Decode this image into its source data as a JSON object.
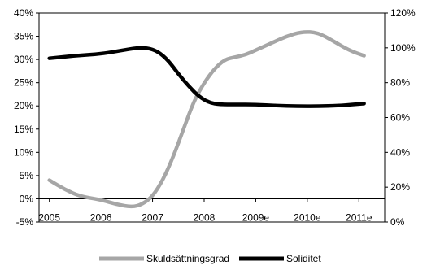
{
  "chart_data": {
    "type": "line",
    "x_categories": [
      "2005",
      "2006",
      "2007",
      "2008",
      "2009e",
      "2010e",
      "2011e"
    ],
    "y_left": {
      "ticks": [
        "-5%",
        "0%",
        "5%",
        "10%",
        "15%",
        "20%",
        "25%",
        "30%",
        "35%",
        "40%"
      ],
      "range": [
        -5,
        40
      ]
    },
    "y_right": {
      "ticks": [
        "0%",
        "20%",
        "40%",
        "60%",
        "80%",
        "100%",
        "120%"
      ],
      "range": [
        0,
        120
      ]
    },
    "grid": false,
    "legend_position": "bottom",
    "series": [
      {
        "name": "Skuldsättningsgrad",
        "axis": "left",
        "color": "#a6a6a6",
        "points": [
          [
            2005.0,
            4
          ],
          [
            2005.3,
            2
          ],
          [
            2005.6,
            0.5
          ],
          [
            2006.0,
            -0.2
          ],
          [
            2006.3,
            -1.2
          ],
          [
            2006.6,
            -1.8
          ],
          [
            2006.8,
            -1.2
          ],
          [
            2007.0,
            0.5
          ],
          [
            2007.2,
            4
          ],
          [
            2007.4,
            9
          ],
          [
            2007.6,
            15
          ],
          [
            2007.8,
            21
          ],
          [
            2008.0,
            25
          ],
          [
            2008.2,
            28
          ],
          [
            2008.4,
            30
          ],
          [
            2008.6,
            30.5
          ],
          [
            2008.8,
            31
          ],
          [
            2009.0,
            32
          ],
          [
            2009.3,
            33.5
          ],
          [
            2009.6,
            35
          ],
          [
            2009.9,
            36
          ],
          [
            2010.2,
            35.8
          ],
          [
            2010.5,
            34
          ],
          [
            2010.8,
            32
          ],
          [
            2011.1,
            30.8
          ]
        ]
      },
      {
        "name": "Soliditet",
        "axis": "right",
        "color": "#000000",
        "points": [
          [
            2005.0,
            94
          ],
          [
            2005.5,
            95.5
          ],
          [
            2006.0,
            96.5
          ],
          [
            2006.4,
            98.5
          ],
          [
            2006.7,
            100
          ],
          [
            2006.9,
            100
          ],
          [
            2007.1,
            98
          ],
          [
            2007.3,
            93
          ],
          [
            2007.5,
            85
          ],
          [
            2007.7,
            78
          ],
          [
            2007.9,
            72
          ],
          [
            2008.1,
            68.5
          ],
          [
            2008.3,
            67.5
          ],
          [
            2008.6,
            67.5
          ],
          [
            2009.0,
            67.5
          ],
          [
            2009.4,
            66.8
          ],
          [
            2009.8,
            66.5
          ],
          [
            2010.2,
            66.5
          ],
          [
            2010.6,
            66.8
          ],
          [
            2010.9,
            67.5
          ],
          [
            2011.1,
            68
          ]
        ]
      }
    ]
  }
}
